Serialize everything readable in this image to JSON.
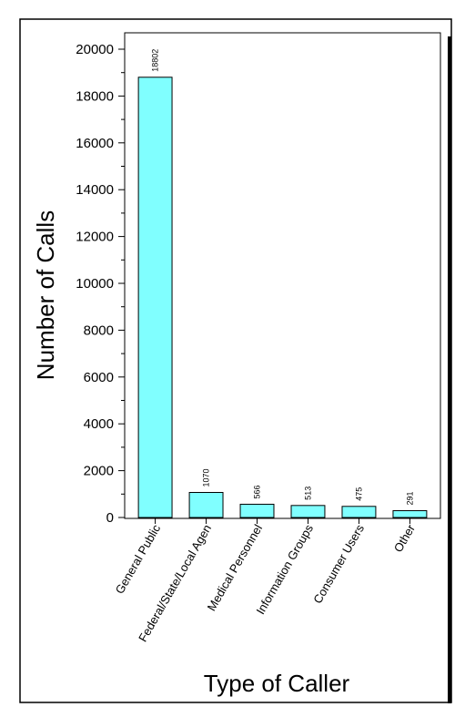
{
  "chart_data": {
    "type": "bar",
    "title": "",
    "xlabel": "Type of Caller",
    "ylabel": "Number of Calls",
    "categories": [
      "General Public",
      "Federal/State/Local Agen",
      "Medical Personnel",
      "Information Groups",
      "Consumer Users",
      "Other"
    ],
    "values": [
      18802,
      1070,
      566,
      513,
      475,
      291
    ],
    "data_labels": [
      "18802",
      "1070",
      "566",
      "513",
      "475",
      "291"
    ],
    "ylim": [
      0,
      20000
    ],
    "yticks": [
      0,
      2000,
      4000,
      6000,
      8000,
      10000,
      12000,
      14000,
      16000,
      18000,
      20000
    ],
    "ytick_labels": [
      "0",
      "2000",
      "4000",
      "6000",
      "8000",
      "10000",
      "12000",
      "14000",
      "16000",
      "18000",
      "20000"
    ],
    "grid": false,
    "legend": "none",
    "bar_color": "#80ffff"
  }
}
